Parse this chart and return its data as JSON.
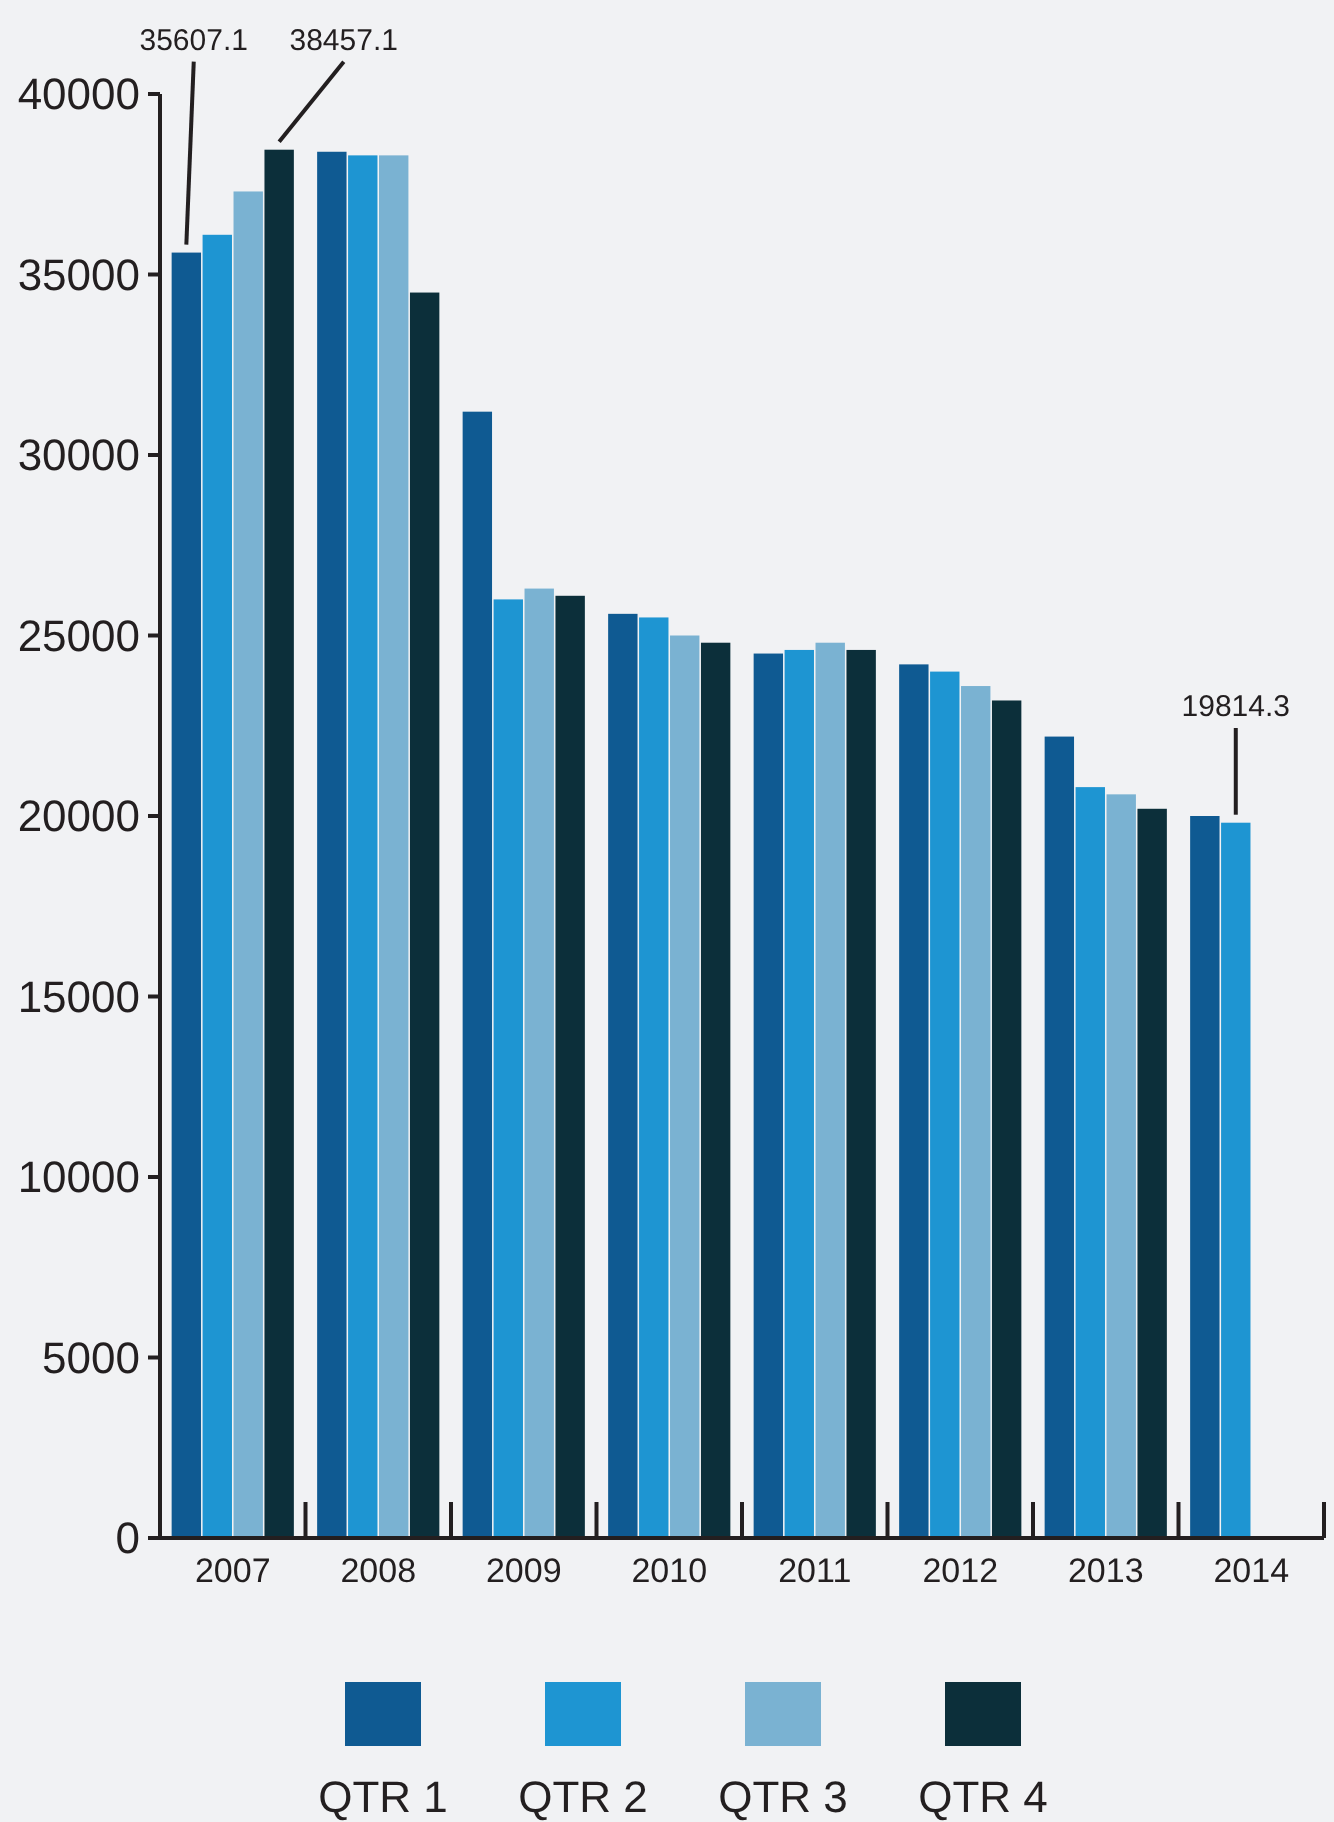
{
  "chart_data": {
    "type": "bar",
    "categories": [
      "2007",
      "2008",
      "2009",
      "2010",
      "2011",
      "2012",
      "2013",
      "2014"
    ],
    "series": [
      {
        "name": "QTR 1",
        "color": "#0f5a92",
        "values": [
          35607.1,
          38400,
          31200,
          25600,
          24500,
          24200,
          22200,
          20000
        ],
        "value_labels": [
          "35607.1",
          null,
          null,
          null,
          null,
          null,
          null,
          null
        ]
      },
      {
        "name": "QTR 2",
        "color": "#1e95d2",
        "values": [
          36100,
          38300,
          26000,
          25500,
          24600,
          24000,
          20800,
          19814.3
        ],
        "value_labels": [
          null,
          null,
          null,
          null,
          null,
          null,
          null,
          "19814.3"
        ]
      },
      {
        "name": "QTR 3",
        "color": "#7ab2d2",
        "values": [
          37300,
          38300,
          26300,
          25000,
          24800,
          23600,
          20600,
          null
        ],
        "value_labels": [
          null,
          null,
          null,
          null,
          null,
          null,
          null,
          null
        ]
      },
      {
        "name": "QTR 4",
        "color": "#0c2f3a",
        "values": [
          38457.1,
          34500,
          26100,
          24800,
          24600,
          23200,
          20200,
          null
        ],
        "value_labels": [
          "38457.1",
          null,
          null,
          null,
          null,
          null,
          null,
          null
        ]
      }
    ],
    "ylim": [
      0,
      40000
    ],
    "yticks": [
      0,
      5000,
      10000,
      15000,
      20000,
      25000,
      30000,
      35000,
      40000
    ],
    "grid": false,
    "legend": "bottom"
  }
}
